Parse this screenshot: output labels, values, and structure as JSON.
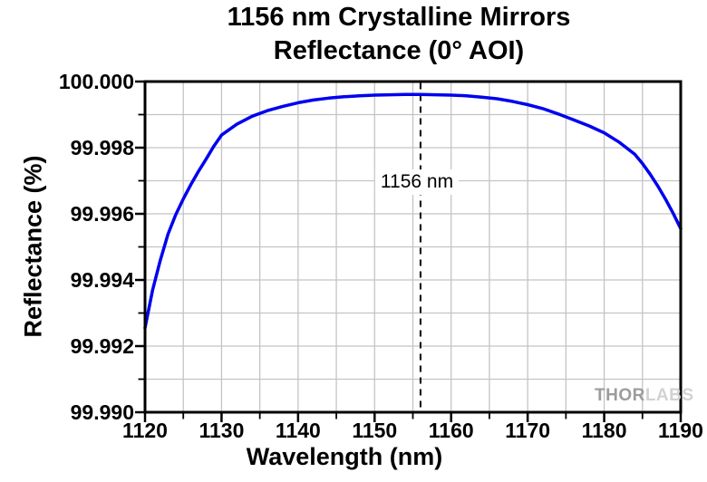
{
  "title": {
    "line1": "1156 nm Crystalline Mirrors",
    "line2": "Reflectance (0° AOI)"
  },
  "axes": {
    "x_label": "Wavelength (nm)",
    "y_label": "Reflectance (%)"
  },
  "annotation": {
    "text": "1156 nm"
  },
  "watermark": {
    "left": "THOR",
    "right": "LABS"
  },
  "colors": {
    "curve": "#0000F0",
    "grid": "#c4c4c4",
    "axis": "#000000",
    "vline": "#000000",
    "watermark_dark": "#9c9c9c",
    "watermark_light": "#d2d2d2"
  },
  "chart_data": {
    "type": "line",
    "title": "1156 nm Crystalline Mirrors Reflectance (0° AOI)",
    "xlabel": "Wavelength (nm)",
    "ylabel": "Reflectance (%)",
    "xlim": [
      1120,
      1190
    ],
    "ylim": [
      99.99,
      100.0
    ],
    "grid": "both",
    "grid_x_step_nm": 5,
    "grid_y_step_pct": 0.001,
    "legend_position": "none",
    "x_ticks": [
      {
        "value": 1120,
        "label": "1120"
      },
      {
        "value": 1130,
        "label": "1130"
      },
      {
        "value": 1140,
        "label": "1140"
      },
      {
        "value": 1150,
        "label": "1150"
      },
      {
        "value": 1160,
        "label": "1160"
      },
      {
        "value": 1170,
        "label": "1170"
      },
      {
        "value": 1180,
        "label": "1180"
      },
      {
        "value": 1190,
        "label": "1190"
      }
    ],
    "x_minor_ticks": [
      1125,
      1135,
      1145,
      1155,
      1165,
      1175,
      1185
    ],
    "y_ticks": [
      {
        "value": 100.0,
        "label": "100.000"
      },
      {
        "value": 99.998,
        "label": "99.998"
      },
      {
        "value": 99.996,
        "label": "99.996"
      },
      {
        "value": 99.994,
        "label": "99.994"
      },
      {
        "value": 99.992,
        "label": "99.992"
      },
      {
        "value": 99.99,
        "label": "99.990"
      }
    ],
    "y_minor_ticks": [
      99.999,
      99.997,
      99.995,
      99.993,
      99.991
    ],
    "vline": {
      "x": 1156,
      "label": "1156 nm",
      "style": "dashed",
      "color": "#000000"
    },
    "series": [
      {
        "name": "Reflectance",
        "color": "#0000F0",
        "x": [
          1120,
          1121,
          1122,
          1123,
          1124,
          1125,
          1126,
          1127,
          1128,
          1129,
          1130,
          1132,
          1134,
          1136,
          1138,
          1140,
          1142,
          1144,
          1146,
          1148,
          1150,
          1152,
          1154,
          1156,
          1158,
          1160,
          1162,
          1164,
          1166,
          1168,
          1170,
          1172,
          1174,
          1176,
          1178,
          1180,
          1182,
          1184,
          1185,
          1186,
          1187,
          1188,
          1189,
          1190
        ],
        "y": [
          99.99255,
          99.9937,
          99.9946,
          99.99538,
          99.99597,
          99.99645,
          99.99689,
          99.99729,
          99.99766,
          99.99805,
          99.99838,
          99.99871,
          99.99895,
          99.99912,
          99.99925,
          99.99936,
          99.99944,
          99.9995,
          99.99954,
          99.99957,
          99.99959,
          99.9996,
          99.99961,
          99.99961,
          99.9996,
          99.99959,
          99.99957,
          99.99953,
          99.99948,
          99.9994,
          99.9993,
          99.99918,
          99.99902,
          99.99884,
          99.99866,
          99.99845,
          99.99816,
          99.9978,
          99.99752,
          99.9972,
          99.99684,
          99.99645,
          99.99602,
          99.99555
        ]
      }
    ]
  }
}
